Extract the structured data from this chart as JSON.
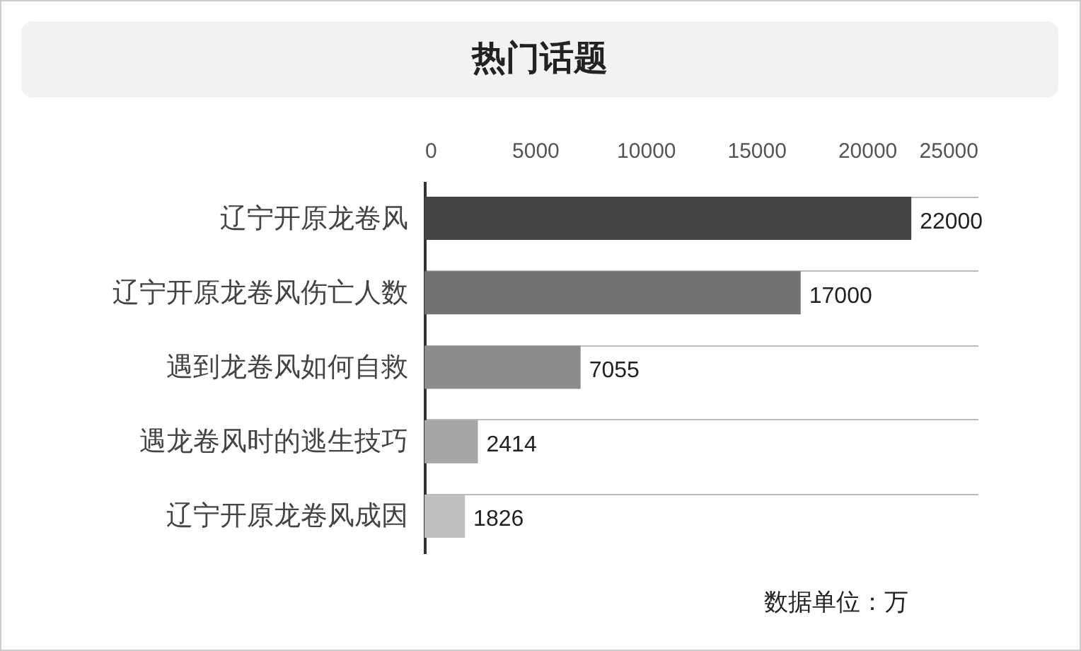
{
  "chart_data": {
    "type": "bar",
    "orientation": "horizontal",
    "title": "热门话题",
    "categories": [
      "辽宁开原龙卷风",
      "辽宁开原龙卷风伤亡人数",
      "遇到龙卷风如何自救",
      "遇龙卷风时的逃生技巧",
      "辽宁开原龙卷风成因"
    ],
    "values": [
      22000,
      17000,
      7055,
      2414,
      1826
    ],
    "colors": [
      "#444444",
      "#737373",
      "#8c8c8c",
      "#a6a6a6",
      "#bfbfbf"
    ],
    "xlim": [
      0,
      25000
    ],
    "xticks": [
      0,
      5000,
      10000,
      15000,
      20000,
      25000
    ],
    "data_labels": true,
    "grid": "y",
    "annotations": [
      "数据单位：万"
    ]
  }
}
